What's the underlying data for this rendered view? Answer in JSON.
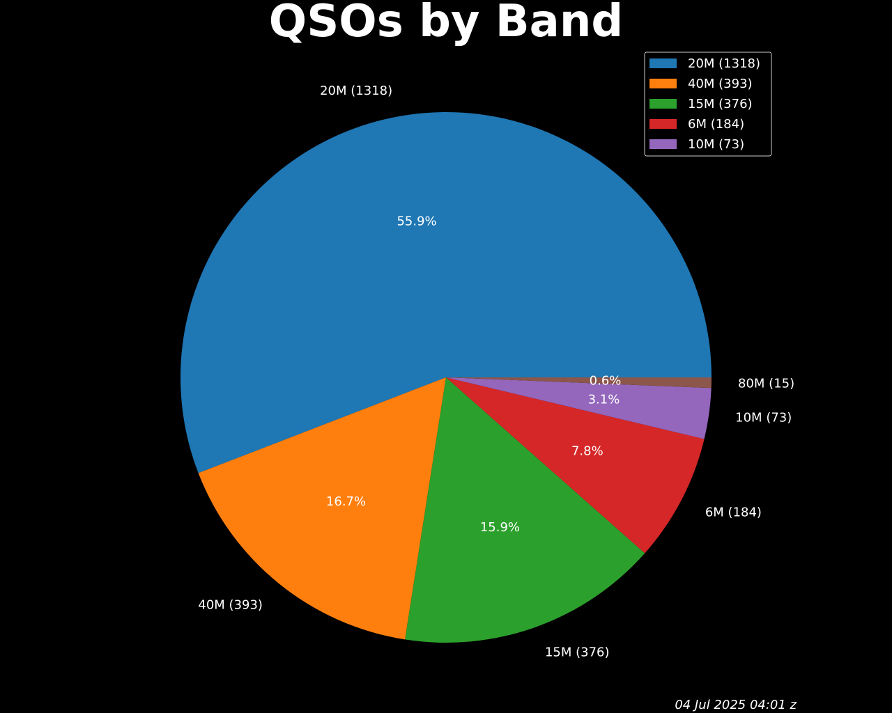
{
  "chart_data": {
    "type": "pie",
    "title": "QSOs by Band",
    "categories": [
      "20M",
      "40M",
      "15M",
      "6M",
      "10M",
      "80M"
    ],
    "values": [
      1318,
      393,
      376,
      184,
      73,
      15
    ],
    "slice_labels": [
      "20M (1318)",
      "40M (393)",
      "15M (376)",
      "6M (184)",
      "10M (73)",
      "80M (15)"
    ],
    "percent_labels": [
      "55.9%",
      "16.7%",
      "15.9%",
      "7.8%",
      "3.1%",
      "0.6%"
    ],
    "colors": [
      "#1f77b4",
      "#ff7f0e",
      "#2ca02c",
      "#d62728",
      "#9467bd",
      "#8c564b"
    ],
    "legend": {
      "placement": "top-right",
      "entries": [
        "20M (1318)",
        "40M (393)",
        "15M (376)",
        "6M (184)",
        "10M (73)"
      ]
    },
    "start_angle": "0° (3 o'clock), counterclockwise",
    "timestamp": "04 Jul 2025 04:01 z"
  }
}
